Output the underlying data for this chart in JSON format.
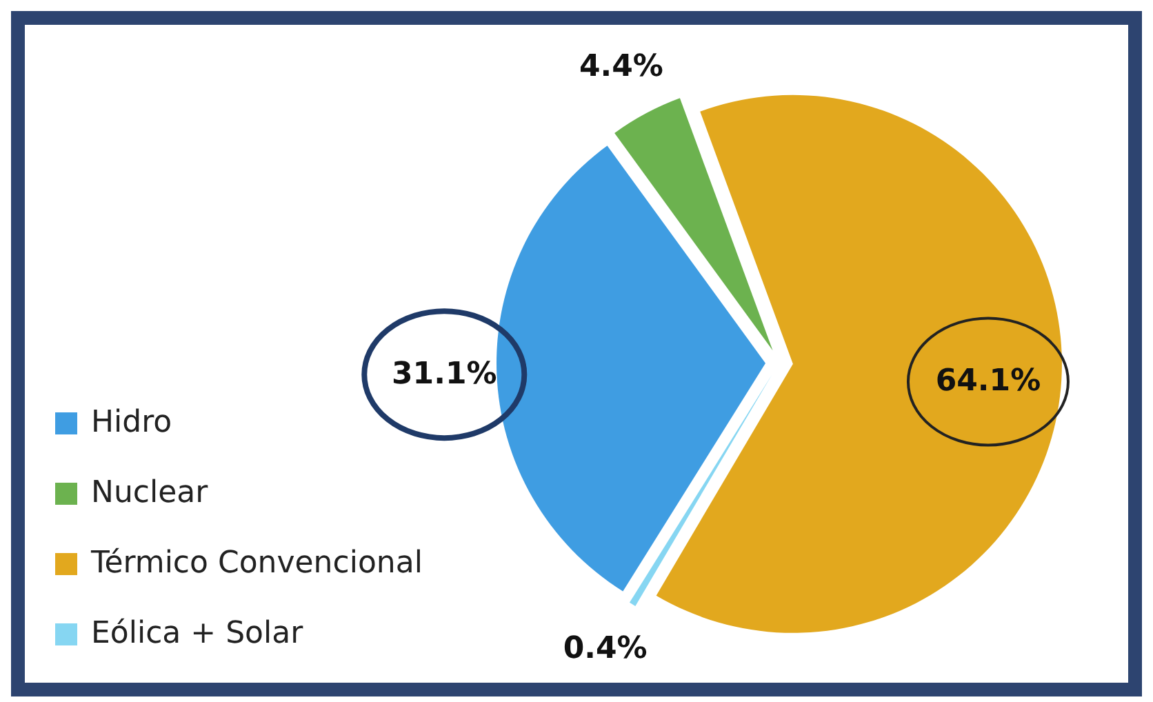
{
  "chart_data": {
    "type": "pie",
    "categories": [
      "Hidro",
      "Nuclear",
      "Térmico Convencional",
      "Eólica + Solar"
    ],
    "values": [
      31.1,
      4.4,
      64.1,
      0.4
    ],
    "colors": [
      "#3f9de2",
      "#6cb24f",
      "#e2a81e",
      "#86d6f2"
    ],
    "value_labels": [
      "31.1%",
      "4.4%",
      "64.1%",
      "0.4%"
    ],
    "legend": "bottom left"
  }
}
